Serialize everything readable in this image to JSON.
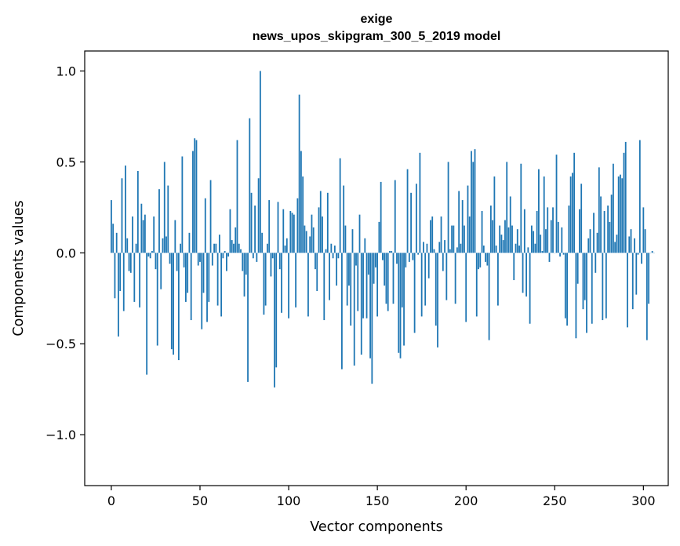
{
  "chart_data": {
    "type": "bar",
    "title_line1": "exige",
    "title_line2": "news_upos_skipgram_300_5_2019 model",
    "xlabel": "Vector components",
    "ylabel": "Components values",
    "xlim": [
      -15,
      314
    ],
    "ylim": [
      -1.28,
      1.11
    ],
    "xticks": [
      0,
      50,
      100,
      150,
      200,
      250,
      300
    ],
    "yticks": [
      -1.0,
      -0.5,
      0.0,
      0.5,
      1.0
    ],
    "ytick_labels": [
      "−1.0",
      "−0.5",
      "0.0",
      "0.5",
      "1.0"
    ],
    "bar_color": "#1f77b4",
    "values": [
      0.29,
      0.16,
      -0.25,
      0.11,
      -0.46,
      -0.21,
      0.41,
      -0.32,
      0.48,
      0.08,
      -0.1,
      -0.11,
      0.2,
      -0.27,
      0.05,
      0.45,
      -0.3,
      0.27,
      0.18,
      0.21,
      -0.67,
      -0.02,
      -0.03,
      0.01,
      0.2,
      -0.09,
      -0.51,
      0.35,
      -0.2,
      0.08,
      0.5,
      0.09,
      0.37,
      -0.06,
      -0.53,
      -0.56,
      0.18,
      -0.1,
      -0.59,
      0.05,
      0.53,
      -0.08,
      -0.27,
      -0.22,
      0.11,
      -0.37,
      0.56,
      0.63,
      0.62,
      -0.07,
      -0.05,
      -0.42,
      -0.22,
      0.3,
      -0.38,
      -0.27,
      0.4,
      -0.07,
      0.05,
      0.05,
      -0.29,
      0.1,
      -0.35,
      -0.03,
      0.01,
      -0.1,
      -0.02,
      0.24,
      0.07,
      0.05,
      0.14,
      0.62,
      0.05,
      0.02,
      -0.1,
      -0.24,
      -0.12,
      -0.71,
      0.74,
      0.33,
      -0.03,
      0.26,
      -0.05,
      0.41,
      1.0,
      0.11,
      -0.34,
      -0.29,
      0.05,
      0.29,
      -0.13,
      -0.03,
      -0.74,
      -0.63,
      0.28,
      -0.09,
      -0.33,
      0.24,
      0.04,
      0.08,
      -0.36,
      0.23,
      0.22,
      0.21,
      -0.3,
      0.3,
      0.87,
      0.56,
      0.42,
      0.15,
      0.12,
      -0.35,
      0.09,
      0.21,
      0.14,
      -0.09,
      -0.21,
      0.25,
      0.34,
      0.2,
      -0.37,
      0.02,
      0.33,
      -0.26,
      0.05,
      -0.03,
      0.04,
      -0.18,
      -0.03,
      0.52,
      -0.64,
      0.37,
      0.15,
      -0.29,
      -0.18,
      -0.4,
      0.13,
      -0.62,
      -0.07,
      -0.32,
      0.21,
      -0.56,
      -0.36,
      0.08,
      -0.36,
      -0.12,
      -0.58,
      -0.72,
      -0.17,
      -0.08,
      -0.35,
      0.17,
      0.39,
      -0.04,
      -0.18,
      -0.28,
      -0.32,
      0.01,
      0.01,
      -0.28,
      0.4,
      -0.06,
      -0.55,
      -0.58,
      -0.3,
      -0.51,
      -0.08,
      0.46,
      -0.05,
      0.33,
      -0.04,
      -0.44,
      0.38,
      -0.01,
      0.55,
      -0.35,
      0.06,
      -0.29,
      0.05,
      -0.14,
      0.18,
      0.2,
      0.02,
      -0.4,
      -0.52,
      0.06,
      0.2,
      -0.1,
      0.07,
      -0.26,
      0.5,
      0.02,
      0.15,
      0.15,
      -0.28,
      0.03,
      0.34,
      0.05,
      0.29,
      0.15,
      -0.38,
      0.37,
      0.2,
      0.56,
      0.5,
      0.57,
      -0.35,
      -0.09,
      -0.08,
      0.23,
      0.04,
      -0.05,
      -0.07,
      -0.48,
      0.26,
      0.18,
      0.42,
      0.04,
      -0.29,
      0.15,
      0.1,
      0.07,
      0.18,
      0.5,
      0.14,
      0.31,
      0.15,
      -0.15,
      0.05,
      0.13,
      0.04,
      0.49,
      -0.22,
      0.24,
      -0.24,
      0.03,
      -0.39,
      0.15,
      0.12,
      0.05,
      0.23,
      0.46,
      0.1,
      0.01,
      0.42,
      0.13,
      0.25,
      -0.05,
      0.18,
      0.25,
      0.0,
      0.54,
      0.17,
      -0.02,
      0.14,
      -0.01,
      -0.36,
      -0.4,
      0.26,
      0.42,
      0.44,
      0.55,
      -0.47,
      -0.17,
      0.24,
      0.38,
      -0.31,
      -0.26,
      -0.44,
      0.08,
      0.13,
      -0.39,
      0.22,
      -0.11,
      0.11,
      0.47,
      0.31,
      -0.37,
      0.23,
      -0.36,
      0.26,
      0.17,
      0.32,
      0.49,
      0.06,
      0.1,
      0.42,
      0.43,
      0.41,
      0.55,
      0.61,
      -0.41,
      0.09,
      0.13,
      -0.31,
      0.08,
      -0.23,
      -0.01,
      0.62,
      -0.06,
      0.25,
      0.13,
      -0.48,
      -0.28,
      0.0,
      0.01,
      0.0
    ]
  }
}
